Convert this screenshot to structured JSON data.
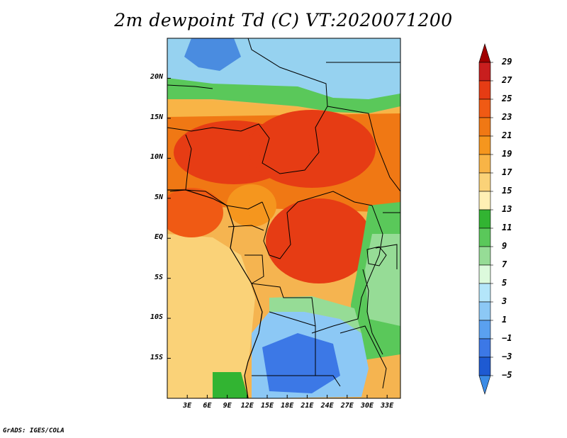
{
  "title": "2m dewpoint Td (C) VT:2020071200",
  "footer": "GrADS: IGES/COLA",
  "map": {
    "lon_range": [
      0,
      35
    ],
    "lat_range": [
      -20,
      25
    ],
    "lat_ticks": [
      {
        "value": 20,
        "label": "20N"
      },
      {
        "value": 15,
        "label": "15N"
      },
      {
        "value": 10,
        "label": "10N"
      },
      {
        "value": 5,
        "label": "5N"
      },
      {
        "value": 0,
        "label": "EQ"
      },
      {
        "value": -5,
        "label": "5S"
      },
      {
        "value": -10,
        "label": "10S"
      },
      {
        "value": -15,
        "label": "15S"
      }
    ],
    "lon_ticks": [
      {
        "value": 3,
        "label": "3E"
      },
      {
        "value": 6,
        "label": "6E"
      },
      {
        "value": 9,
        "label": "9E"
      },
      {
        "value": 12,
        "label": "12E"
      },
      {
        "value": 15,
        "label": "15E"
      },
      {
        "value": 18,
        "label": "18E"
      },
      {
        "value": 21,
        "label": "21E"
      },
      {
        "value": 24,
        "label": "24E"
      },
      {
        "value": 27,
        "label": "27E"
      },
      {
        "value": 30,
        "label": "30E"
      },
      {
        "value": 33,
        "label": "33E"
      }
    ],
    "land_sea_note": "shaded 2m dewpoint field over Central Africa"
  },
  "colorbar": {
    "levels": [
      "29",
      "27",
      "25",
      "23",
      "21",
      "19",
      "17",
      "15",
      "13",
      "11",
      "9",
      "7",
      "5",
      "3",
      "1",
      "−1",
      "−3",
      "−5"
    ],
    "colors": [
      "#a00000",
      "#c81e1e",
      "#e63c14",
      "#f05a14",
      "#f07814",
      "#f5961e",
      "#f8b446",
      "#fad278",
      "#fff0b4",
      "#32b432",
      "#5ac85a",
      "#96dc96",
      "#dcfadc",
      "#b4e6fa",
      "#8cc8f5",
      "#5aa0f0",
      "#3c78e6",
      "#1e5ad2",
      "#3c8ce6"
    ]
  }
}
